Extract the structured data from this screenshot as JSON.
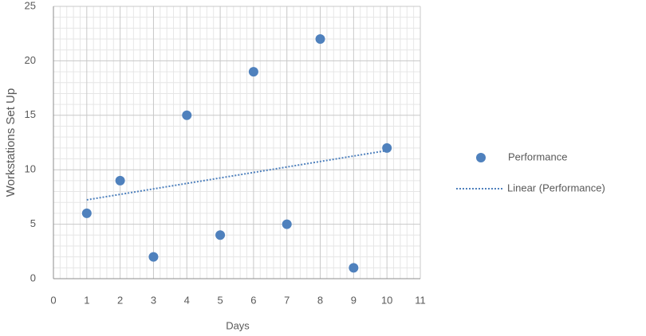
{
  "chart_data": {
    "type": "scatter",
    "x_label": "Days",
    "y_label": "Workstations Set Up",
    "series": [
      {
        "name": "Performance",
        "color": "#4f81bd",
        "x": [
          1,
          2,
          3,
          4,
          5,
          6,
          7,
          8,
          9,
          10
        ],
        "values": [
          6,
          9,
          2,
          15,
          4,
          19,
          5,
          22,
          1,
          12
        ]
      }
    ],
    "trendline": {
      "type": "linear",
      "name": "Linear (Performance)",
      "color": "#4f81bd"
    },
    "xlim": [
      0,
      11
    ],
    "xticks": [
      0,
      1,
      2,
      3,
      4,
      5,
      6,
      7,
      8,
      9,
      10,
      11
    ],
    "ylim": [
      0,
      25
    ],
    "yticks": [
      0,
      5,
      10,
      15,
      20,
      25
    ],
    "grid": true,
    "minor_grid": true,
    "legend": "right"
  }
}
